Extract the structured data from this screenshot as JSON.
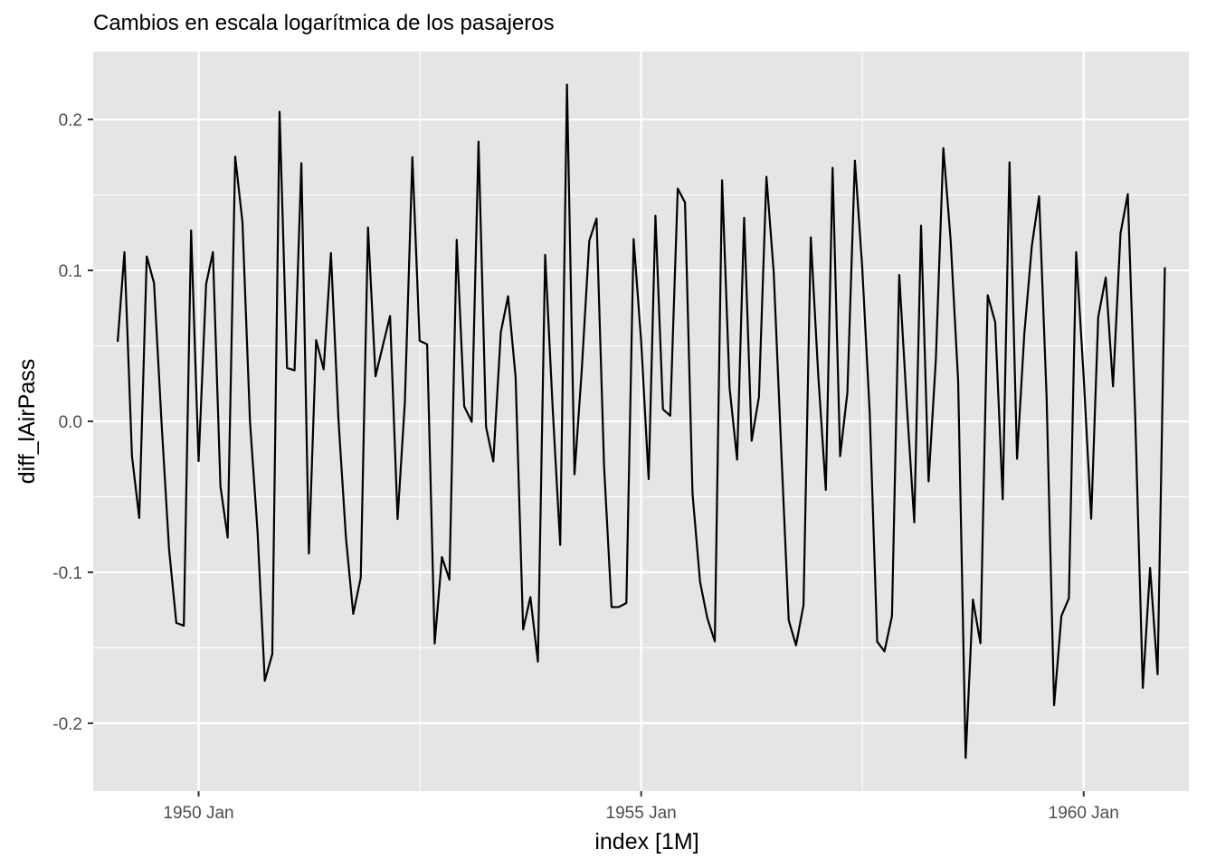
{
  "chart_data": {
    "type": "line",
    "title": "Cambios en escala logarítmica de los pasajeros",
    "xlabel": "index [1M]",
    "ylabel": "diff_lAirPass",
    "x_start": "1949-02",
    "x_end": "1960-12",
    "x_ticks": [
      {
        "value": "1950-01",
        "label": "1950 Jan"
      },
      {
        "value": "1955-01",
        "label": "1955 Jan"
      },
      {
        "value": "1960-01",
        "label": "1960 Jan"
      }
    ],
    "y_ticks": [
      {
        "value": 0.2,
        "label": "0.2"
      },
      {
        "value": 0.1,
        "label": "0.1"
      },
      {
        "value": 0.0,
        "label": "0.0"
      },
      {
        "value": -0.1,
        "label": "-0.1"
      },
      {
        "value": -0.2,
        "label": "-0.2"
      }
    ],
    "xlim": [
      "1948-10-23",
      "1961-03-10"
    ],
    "ylim": [
      -0.245,
      0.245
    ],
    "grid": true,
    "legend": "none",
    "colors": {
      "panel": "#e5e5e5",
      "grid": "#ffffff",
      "line": "#000000"
    },
    "series": [
      {
        "values": [
          0.0527,
          0.1121,
          -0.023,
          -0.064,
          0.1093,
          0.0916,
          -0.0008,
          -0.0846,
          -0.1335,
          -0.1354,
          0.1265,
          -0.0264,
          0.0909,
          0.1121,
          -0.043,
          -0.077,
          0.1754,
          0.1318,
          -0.0003,
          -0.0726,
          -0.1719,
          -0.1542,
          0.2051,
          0.0354,
          0.0338,
          0.171,
          -0.0876,
          0.0538,
          0.0344,
          0.1115,
          0.0012,
          -0.0773,
          -0.1275,
          -0.1036,
          0.1284,
          0.0298,
          0.0508,
          0.0698,
          -0.0647,
          0.0125,
          0.175,
          0.0534,
          0.051,
          -0.1472,
          -0.0899,
          -0.1049,
          0.1203,
          0.0099,
          -0.0003,
          0.1853,
          -0.0037,
          -0.0266,
          0.059,
          0.0829,
          0.0292,
          -0.1379,
          -0.1164,
          -0.1592,
          0.1103,
          0.0085,
          -0.0819,
          0.2231,
          -0.0351,
          0.0341,
          0.1196,
          0.1344,
          -0.0296,
          -0.1231,
          -0.123,
          -0.1204,
          0.1207,
          0.0533,
          -0.0383,
          0.1362,
          0.008,
          0.0037,
          0.1542,
          0.145,
          -0.0479,
          -0.1062,
          -0.1304,
          -0.1458,
          0.1597,
          0.022,
          -0.0254,
          0.1349,
          -0.0129,
          0.0161,
          0.162,
          0.0989,
          -0.0188,
          -0.1318,
          -0.1484,
          -0.1217,
          0.1219,
          0.0299,
          -0.0454,
          0.168,
          -0.0231,
          0.019,
          0.1727,
          0.1028,
          0.0062,
          -0.1459,
          -0.1524,
          -0.129,
          0.097,
          0.0115,
          -0.0669,
          0.1296,
          -0.0398,
          0.0408,
          0.181,
          0.1202,
          0.027,
          -0.223,
          -0.1181,
          -0.147,
          0.0836,
          0.0656,
          -0.0517,
          0.1716,
          -0.0248,
          0.0577,
          0.1161,
          0.1491,
          0.016,
          -0.1881,
          -0.129,
          -0.1172,
          0.1121,
          0.0293,
          -0.0645,
          0.0691,
          0.0953,
          0.0232,
          0.1245,
          0.1505,
          0.0013,
          -0.1766,
          -0.0971,
          -0.1676,
          0.1021
        ]
      }
    ]
  }
}
